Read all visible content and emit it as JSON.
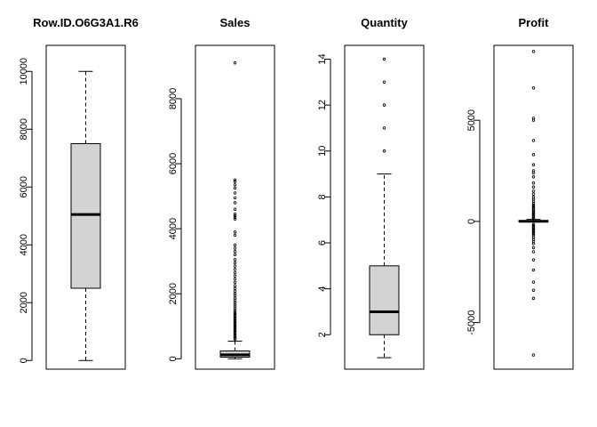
{
  "chart_data": [
    {
      "type": "boxplot",
      "title": "Row.ID.O6G3A1.R6",
      "ylim": [
        -300,
        10900
      ],
      "yticks": [
        0,
        2000,
        4000,
        6000,
        8000,
        10000
      ],
      "box": {
        "whisker_low": 0,
        "q1": 2500,
        "median": 5050,
        "q3": 7500,
        "whisker_high": 10000
      },
      "outliers": []
    },
    {
      "type": "boxplot",
      "title": "Sales",
      "ylim": [
        -320,
        9640
      ],
      "yticks": [
        0,
        2000,
        4000,
        6000,
        8000
      ],
      "box": {
        "whisker_low": 0,
        "q1": 50,
        "median": 120,
        "q3": 240,
        "whisker_high": 540
      },
      "outliers": [
        600,
        640,
        680,
        720,
        760,
        800,
        840,
        880,
        920,
        960,
        1000,
        1040,
        1080,
        1120,
        1160,
        1200,
        1240,
        1280,
        1320,
        1360,
        1400,
        1450,
        1500,
        1560,
        1620,
        1680,
        1740,
        1800,
        1870,
        1940,
        2000,
        2080,
        2160,
        2250,
        2350,
        2450,
        2550,
        2650,
        2750,
        2850,
        2950,
        3050,
        3200,
        3300,
        3400,
        3500,
        3800,
        3900,
        4300,
        4350,
        4400,
        4450,
        4600,
        4800,
        4950,
        5100,
        5250,
        5350,
        5450,
        5500,
        9100
      ]
    },
    {
      "type": "boxplot",
      "title": "Quantity",
      "ylim": [
        0.5,
        14.6
      ],
      "yticks": [
        2,
        4,
        6,
        8,
        10,
        12,
        14
      ],
      "box": {
        "whisker_low": 1,
        "q1": 2,
        "median": 3,
        "q3": 5,
        "whisker_high": 9
      },
      "outliers": [
        10,
        11,
        12,
        13,
        14
      ]
    },
    {
      "type": "boxplot",
      "title": "Profit",
      "ylim": [
        -7300,
        8700
      ],
      "yticks": [
        -5000,
        0,
        5000
      ],
      "box": {
        "whisker_low": -30,
        "q1": -5,
        "median": 10,
        "q3": 40,
        "whisker_high": 100
      },
      "outliers": [
        150,
        200,
        250,
        300,
        350,
        400,
        450,
        500,
        560,
        620,
        680,
        750,
        820,
        900,
        1000,
        1100,
        1200,
        1350,
        1500,
        1700,
        1900,
        2200,
        2400,
        2500,
        2800,
        3300,
        4000,
        5000,
        5100,
        6600,
        8400,
        -150,
        -200,
        -250,
        -300,
        -350,
        -400,
        -450,
        -500,
        -560,
        -620,
        -700,
        -800,
        -900,
        -1000,
        -1100,
        -1300,
        -1500,
        -1900,
        -2400,
        -3000,
        -3400,
        -3800,
        -6600
      ]
    }
  ]
}
